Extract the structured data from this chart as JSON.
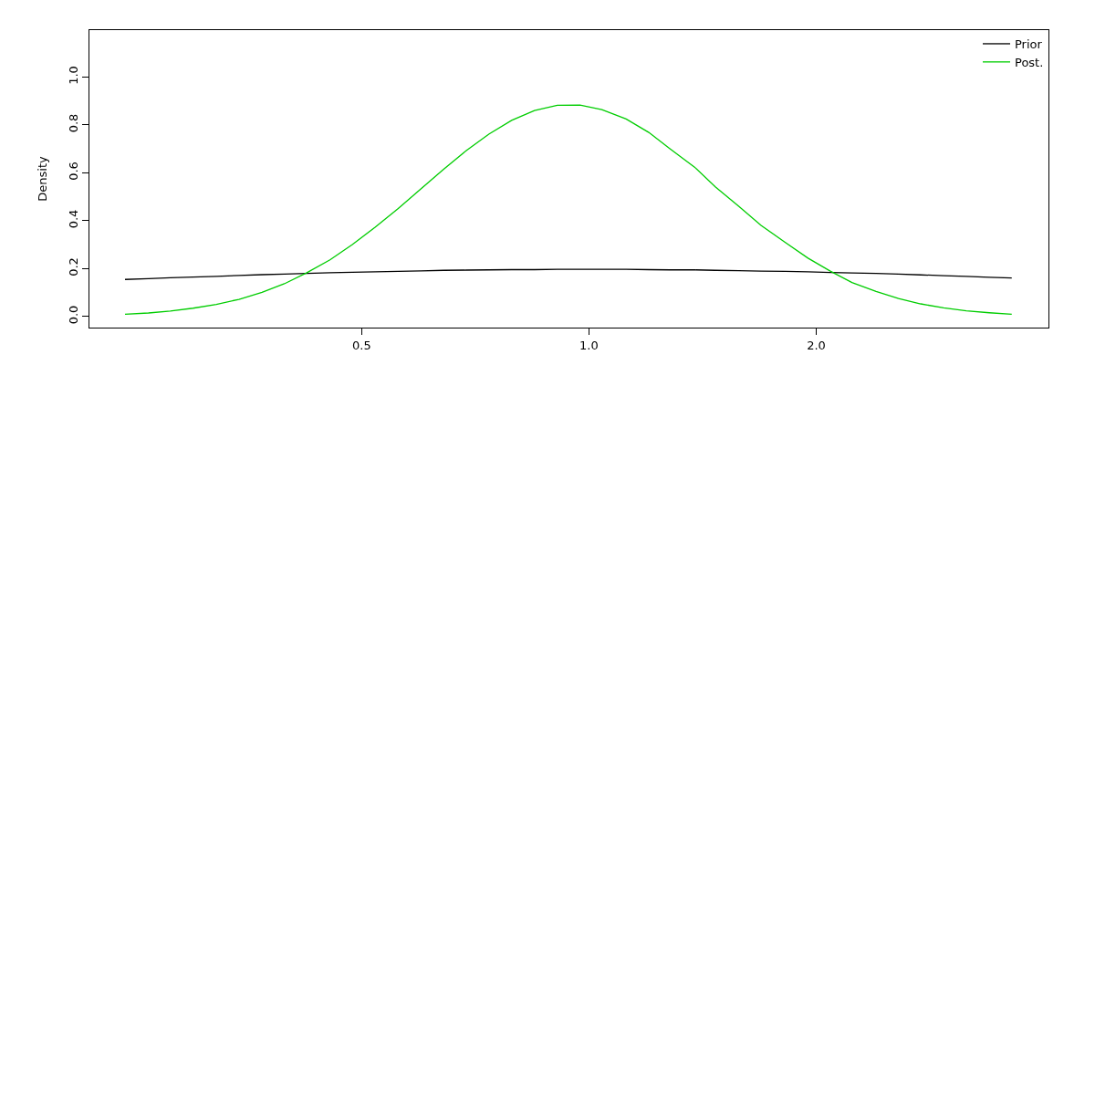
{
  "chart_data": {
    "type": "line",
    "ylabel": "Density",
    "log": "x",
    "legend": "top right",
    "xlim": [
      0.218,
      4.06
    ],
    "ylim": [
      -0.046,
      1.196
    ],
    "xticks": [
      0.5,
      {
        "value": 1,
        "label": "1.0"
      },
      {
        "value": 2,
        "label": "2.0"
      }
    ],
    "yticks": [
      {
        "value": 0,
        "label": "0.0"
      },
      0.2,
      0.4,
      0.6,
      0.8,
      {
        "value": 1,
        "label": "1.0"
      }
    ],
    "x": [
      0.243,
      0.261,
      0.279,
      0.299,
      0.321,
      0.344,
      0.369,
      0.395,
      0.423,
      0.454,
      0.486,
      0.521,
      0.559,
      0.599,
      0.642,
      0.688,
      0.737,
      0.79,
      0.847,
      0.908,
      0.973,
      1.04,
      1.12,
      1.2,
      1.28,
      1.38,
      1.47,
      1.58,
      1.69,
      1.82,
      1.95,
      2.09,
      2.23,
      2.4,
      2.57,
      2.75,
      2.95,
      3.16,
      3.39,
      3.63
    ],
    "series": [
      {
        "name": "Prior",
        "color": "#000000",
        "values": [
          0.155,
          0.158,
          0.162,
          0.165,
          0.168,
          0.172,
          0.175,
          0.177,
          0.18,
          0.183,
          0.185,
          0.187,
          0.189,
          0.191,
          0.193,
          0.194,
          0.195,
          0.196,
          0.196,
          0.197,
          0.197,
          0.197,
          0.197,
          0.196,
          0.195,
          0.195,
          0.193,
          0.192,
          0.19,
          0.189,
          0.187,
          0.184,
          0.182,
          0.18,
          0.177,
          0.174,
          0.171,
          0.168,
          0.164,
          0.161
        ]
      },
      {
        "name": "Post.",
        "color": "#00cd00",
        "values": [
          0.01,
          0.015,
          0.023,
          0.035,
          0.051,
          0.072,
          0.101,
          0.137,
          0.183,
          0.237,
          0.301,
          0.373,
          0.451,
          0.533,
          0.615,
          0.693,
          0.762,
          0.819,
          0.86,
          0.882,
          0.883,
          0.864,
          0.825,
          0.769,
          0.701,
          0.624,
          0.542,
          0.46,
          0.381,
          0.309,
          0.244,
          0.189,
          0.142,
          0.105,
          0.075,
          0.053,
          0.036,
          0.024,
          0.016,
          0.01
        ]
      }
    ]
  }
}
